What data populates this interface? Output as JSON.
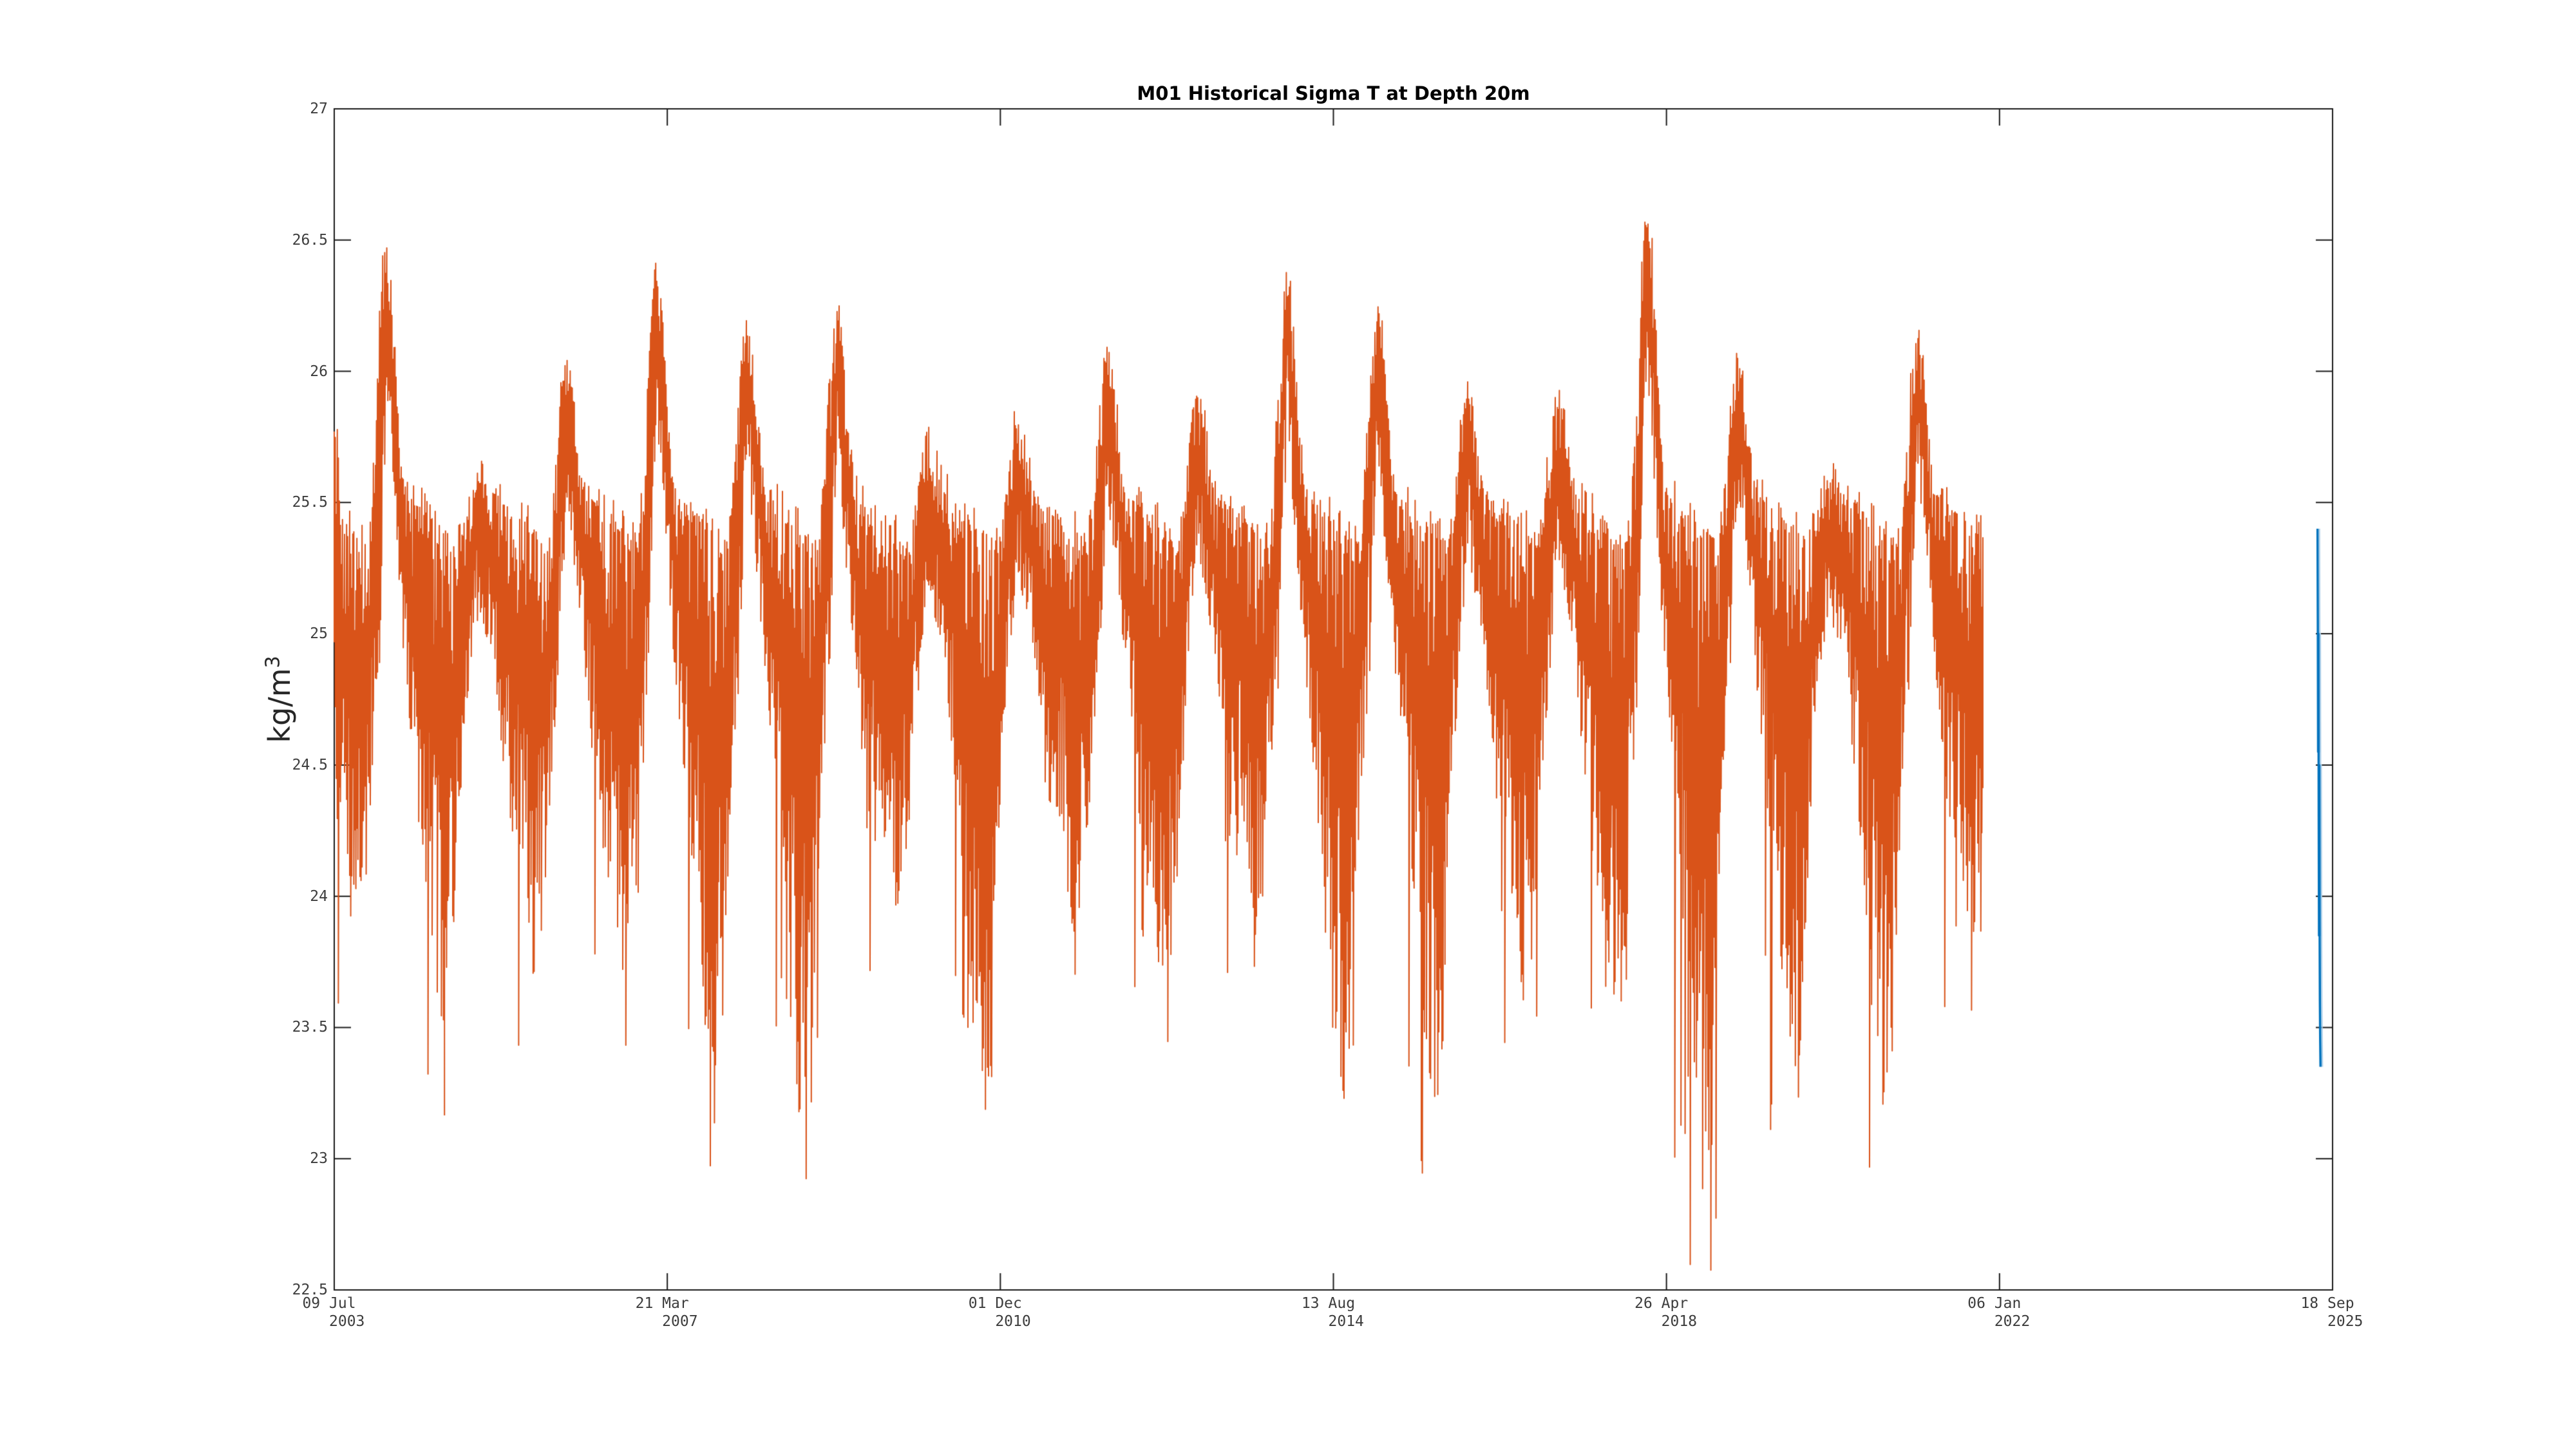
{
  "figure": {
    "background": "#ffffff",
    "axis_color": "#1a1a1a",
    "tick_label_color": "#3d3d3d"
  },
  "chart_data": {
    "type": "line",
    "title": "M01 Historical Sigma T at Depth 20m",
    "ylabel": "kg/m³",
    "ylabel_base": "kg/m",
    "ylabel_sup": "3",
    "xlabel": "",
    "grid": false,
    "legend": null,
    "ylim": [
      22.5,
      27
    ],
    "xlim": [
      2003.518,
      2025.712
    ],
    "yticks": [
      {
        "value": 27,
        "label": "27"
      },
      {
        "value": 26.5,
        "label": "26.5"
      },
      {
        "value": 26,
        "label": "26"
      },
      {
        "value": 25.5,
        "label": "25.5"
      },
      {
        "value": 25,
        "label": "25"
      },
      {
        "value": 24.5,
        "label": "24.5"
      },
      {
        "value": 24,
        "label": "24"
      },
      {
        "value": 23.5,
        "label": "23.5"
      },
      {
        "value": 23,
        "label": "23"
      },
      {
        "value": 22.5,
        "label": "22.5"
      }
    ],
    "xticks": [
      {
        "t": 2003.518,
        "date": "09 Jul",
        "year": "2003"
      },
      {
        "t": 2007.217,
        "date": "21 Mar",
        "year": "2007"
      },
      {
        "t": 2010.916,
        "date": "01 Dec",
        "year": "2010"
      },
      {
        "t": 2014.615,
        "date": "13 Aug",
        "year": "2014"
      },
      {
        "t": 2018.314,
        "date": "26 Apr",
        "year": "2018"
      },
      {
        "t": 2022.013,
        "date": "06 Jan",
        "year": "2022"
      },
      {
        "t": 2025.712,
        "date": "18 Sep",
        "year": "2025"
      }
    ],
    "series": [
      {
        "name": "historical sigma-t",
        "style": "noisy-line",
        "color": "#D95319",
        "t_start": 2003.518,
        "t_end": 2021.83,
        "start_value": 25.95,
        "end_value": 25.0,
        "summer_top_plateau": 25.45,
        "annual_cycles": [
          {
            "year": 2003,
            "winter_peak": null,
            "summer_trough": 23.55
          },
          {
            "year": 2004,
            "winter_peak": 26.47,
            "summer_trough": 23.15
          },
          {
            "year": 2005,
            "winter_peak": 25.6,
            "summer_trough": 23.4
          },
          {
            "year": 2006,
            "winter_peak": 26.05,
            "summer_trough": 23.25
          },
          {
            "year": 2007,
            "winter_peak": 26.38,
            "summer_trough": 22.95
          },
          {
            "year": 2008,
            "winter_peak": 26.2,
            "summer_trough": 22.75
          },
          {
            "year": 2009,
            "winter_peak": 26.22,
            "summer_trough": 23.5
          },
          {
            "year": 2010,
            "winter_peak": 25.72,
            "summer_trough": 22.85
          },
          {
            "year": 2011,
            "winter_peak": 25.8,
            "summer_trough": 23.55
          },
          {
            "year": 2012,
            "winter_peak": 26.1,
            "summer_trough": 23.2
          },
          {
            "year": 2013,
            "winter_peak": 25.9,
            "summer_trough": 23.5
          },
          {
            "year": 2014,
            "winter_peak": 26.35,
            "summer_trough": 22.95
          },
          {
            "year": 2015,
            "winter_peak": 26.25,
            "summer_trough": 22.85
          },
          {
            "year": 2016,
            "winter_peak": 25.9,
            "summer_trough": 23.3
          },
          {
            "year": 2017,
            "winter_peak": 25.88,
            "summer_trough": 23.1
          },
          {
            "year": 2018,
            "winter_peak": 26.58,
            "summer_trough": 22.55
          },
          {
            "year": 2019,
            "winter_peak": 26.05,
            "summer_trough": 23.0
          },
          {
            "year": 2020,
            "winter_peak": 25.6,
            "summer_trough": 22.95
          },
          {
            "year": 2021,
            "winter_peak": 26.13,
            "summer_trough": 23.4
          }
        ]
      },
      {
        "name": "recent sigma-t",
        "style": "line",
        "color": "#0072BD",
        "light_color": "#a9cde8",
        "t_start": 2025.545,
        "t_end": 2025.578,
        "values": [
          25.4,
          25.05,
          24.55,
          25.0,
          24.3,
          23.85,
          24.5,
          23.9,
          23.6,
          23.45,
          23.35
        ]
      }
    ]
  }
}
